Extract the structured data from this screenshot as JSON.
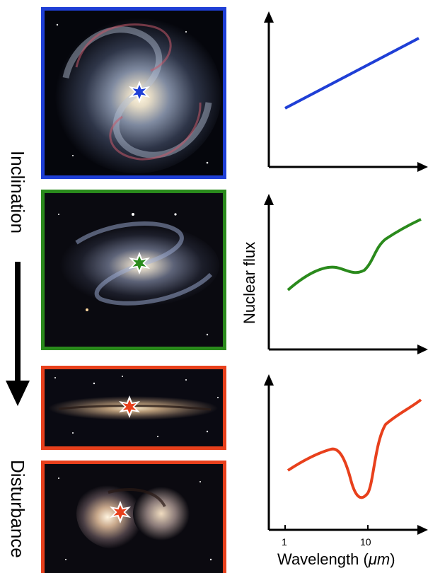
{
  "labels": {
    "inclination": "Inclination",
    "disturbance": "Disturbance",
    "y_axis": "Nuclear flux",
    "x_axis_prefix": "Wavelength (",
    "x_axis_unit": "μm",
    "x_axis_suffix": ")"
  },
  "panels": [
    {
      "name": "face-on-spiral",
      "border_color": "#1f3fd6",
      "star_color": "#1f3fd6"
    },
    {
      "name": "inclined-spiral",
      "border_color": "#2a8a1c",
      "star_color": "#2a8a1c"
    },
    {
      "name": "edge-on-galaxy",
      "border_color": "#e8401c",
      "star_color": "#e8401c"
    },
    {
      "name": "merging-galaxies",
      "border_color": "#e8401c",
      "star_color": "#e8401c"
    }
  ],
  "chart_data": [
    {
      "type": "line",
      "series_color": "#1f3fd6",
      "shape": "rising straight line"
    },
    {
      "type": "line",
      "series_color": "#2a8a1c",
      "shape": "rising with shallow dip"
    },
    {
      "type": "line",
      "series_color": "#e8401c",
      "shape": "rising with deep absorption dip near 10 μm",
      "x_ticks": [
        "1",
        "10"
      ]
    }
  ]
}
